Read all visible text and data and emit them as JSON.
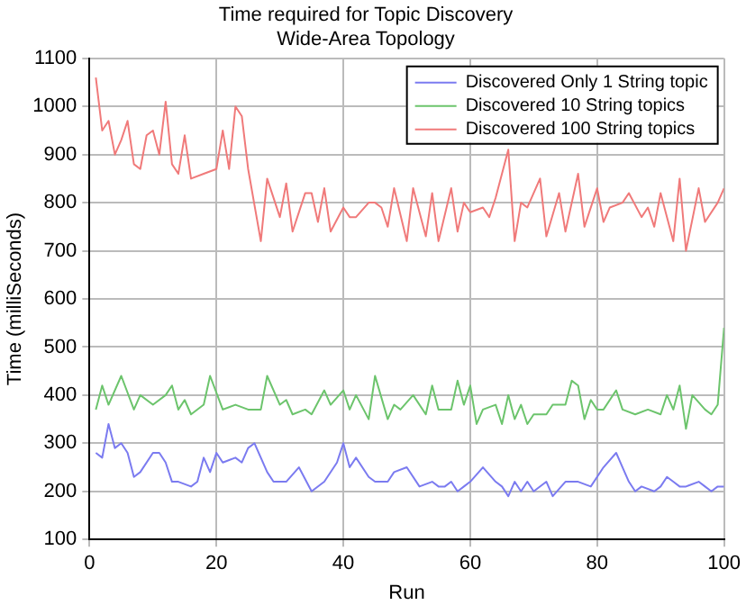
{
  "chart_data": {
    "type": "line",
    "title": "Time required for Topic Discovery",
    "subtitle": "Wide-Area Topology",
    "xlabel": "Run",
    "ylabel": "Time (milliSeconds)",
    "xlim": [
      0,
      100
    ],
    "xticks": [
      0,
      20,
      40,
      60,
      80,
      100
    ],
    "ylim": [
      100,
      1100
    ],
    "yticks": [
      100,
      200,
      300,
      400,
      500,
      600,
      700,
      800,
      900,
      1000,
      1100
    ],
    "grid": true,
    "legend": "top right",
    "marker": "none",
    "line_style": "solid",
    "series": [
      {
        "name": "Discovered Only 1 String topic",
        "color": "#7b7bf0",
        "x": [
          1,
          2,
          3,
          4,
          5,
          6,
          7,
          8,
          10,
          11,
          12,
          13,
          14,
          16,
          17,
          18,
          19,
          20,
          21,
          23,
          24,
          25,
          26,
          28,
          29,
          31,
          33,
          35,
          37,
          39,
          40,
          41,
          42,
          44,
          45,
          47,
          48,
          50,
          52,
          54,
          55,
          56,
          57,
          58,
          59,
          60,
          62,
          64,
          65,
          66,
          67,
          68,
          69,
          70,
          72,
          73,
          75,
          77,
          79,
          81,
          83,
          84,
          85,
          86,
          87,
          89,
          90,
          91,
          92,
          93,
          94,
          96,
          97,
          98,
          99,
          100
        ],
        "values": [
          280,
          270,
          340,
          290,
          300,
          280,
          230,
          240,
          280,
          280,
          260,
          220,
          220,
          210,
          220,
          270,
          240,
          280,
          260,
          270,
          260,
          290,
          300,
          240,
          220,
          220,
          250,
          200,
          220,
          260,
          300,
          250,
          270,
          230,
          220,
          220,
          240,
          250,
          210,
          220,
          210,
          210,
          220,
          200,
          210,
          220,
          250,
          220,
          210,
          190,
          220,
          200,
          220,
          200,
          220,
          190,
          220,
          220,
          210,
          250,
          280,
          250,
          220,
          200,
          210,
          200,
          210,
          230,
          220,
          210,
          210,
          220,
          210,
          200,
          210,
          210
        ]
      },
      {
        "name": "Discovered 10 String topics",
        "color": "#6cc46c",
        "x": [
          1,
          2,
          3,
          5,
          7,
          8,
          10,
          12,
          13,
          14,
          15,
          16,
          18,
          19,
          21,
          23,
          25,
          27,
          28,
          30,
          31,
          32,
          34,
          35,
          37,
          38,
          40,
          41,
          42,
          44,
          45,
          47,
          48,
          49,
          51,
          53,
          54,
          55,
          57,
          58,
          59,
          60,
          61,
          62,
          64,
          65,
          66,
          67,
          68,
          69,
          70,
          72,
          73,
          75,
          76,
          77,
          78,
          79,
          80,
          81,
          83,
          84,
          86,
          88,
          90,
          91,
          92,
          93,
          94,
          95,
          97,
          98,
          99,
          100
        ],
        "values": [
          370,
          420,
          380,
          440,
          370,
          400,
          380,
          400,
          420,
          370,
          390,
          360,
          380,
          440,
          370,
          380,
          370,
          370,
          440,
          380,
          390,
          360,
          370,
          360,
          410,
          380,
          410,
          370,
          400,
          350,
          440,
          350,
          380,
          370,
          400,
          360,
          420,
          370,
          370,
          430,
          380,
          420,
          340,
          370,
          380,
          340,
          400,
          350,
          380,
          340,
          360,
          360,
          380,
          380,
          430,
          420,
          350,
          390,
          370,
          370,
          410,
          370,
          360,
          370,
          360,
          400,
          370,
          420,
          330,
          400,
          370,
          360,
          380,
          540
        ]
      },
      {
        "name": "Discovered 100 String topics",
        "color": "#f07a7a",
        "x": [
          1,
          2,
          3,
          4,
          5,
          6,
          7,
          8,
          9,
          10,
          11,
          12,
          13,
          14,
          15,
          16,
          18,
          20,
          21,
          22,
          23,
          24,
          25,
          27,
          28,
          30,
          31,
          32,
          34,
          35,
          36,
          37,
          38,
          40,
          41,
          42,
          44,
          45,
          46,
          47,
          48,
          50,
          51,
          53,
          54,
          55,
          57,
          58,
          59,
          60,
          62,
          63,
          64,
          66,
          67,
          68,
          69,
          71,
          72,
          74,
          75,
          77,
          78,
          80,
          81,
          82,
          84,
          85,
          87,
          88,
          89,
          90,
          92,
          93,
          94,
          96,
          97,
          99,
          100
        ],
        "values": [
          1060,
          950,
          970,
          900,
          930,
          970,
          880,
          870,
          940,
          950,
          900,
          1010,
          880,
          860,
          940,
          850,
          860,
          870,
          950,
          870,
          1000,
          980,
          870,
          720,
          850,
          770,
          840,
          740,
          820,
          820,
          760,
          830,
          740,
          790,
          770,
          770,
          800,
          800,
          790,
          750,
          830,
          720,
          830,
          730,
          820,
          720,
          830,
          740,
          800,
          780,
          790,
          770,
          810,
          910,
          720,
          800,
          790,
          850,
          730,
          820,
          740,
          860,
          750,
          830,
          760,
          790,
          800,
          820,
          770,
          790,
          750,
          820,
          720,
          850,
          700,
          830,
          760,
          800,
          830
        ]
      }
    ]
  }
}
